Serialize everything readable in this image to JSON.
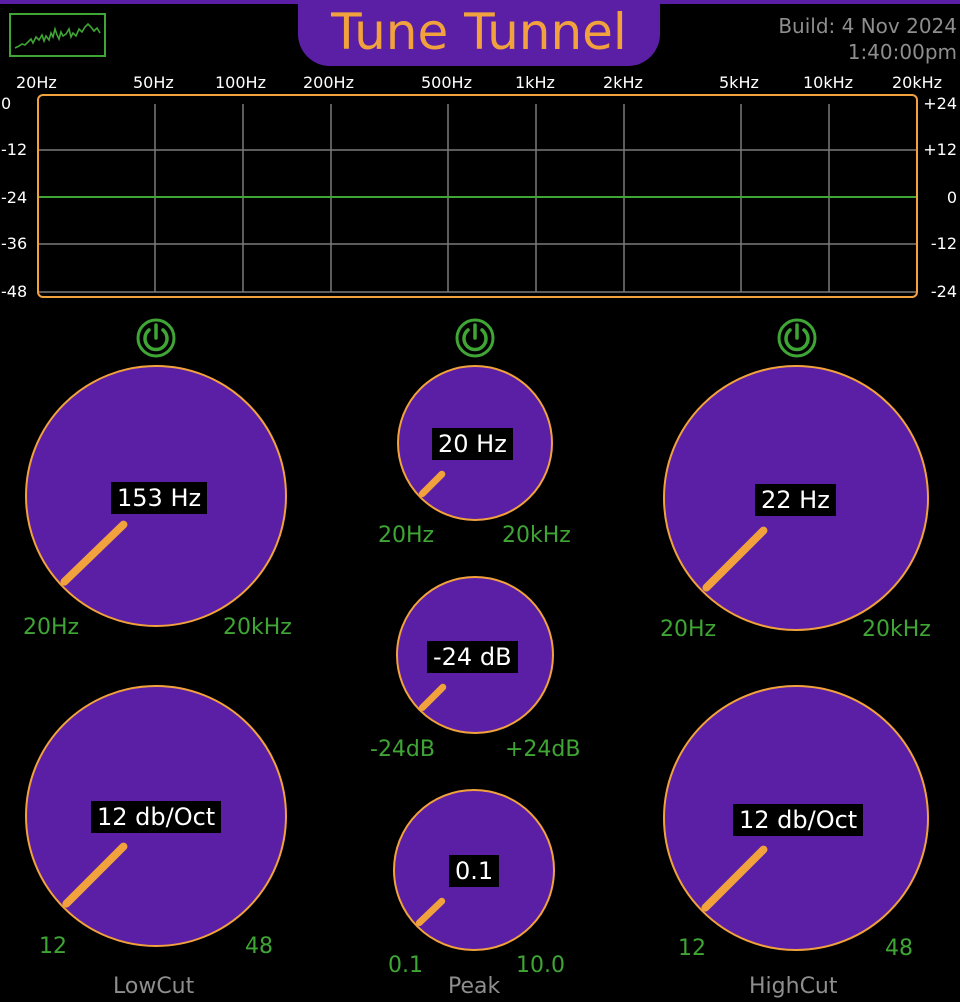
{
  "app": {
    "title": "Tune Tunnel",
    "build_line1": "Build: 4 Nov 2024",
    "build_line2": "1:40:00pm",
    "logo_icon": "spectrum-logo-icon"
  },
  "colors": {
    "accent": "#5b1fa6",
    "orange": "#f2a23c",
    "green": "#3fa535",
    "grey": "#8e8e8e"
  },
  "graph": {
    "freq_labels": [
      "20Hz",
      "50Hz",
      "100Hz",
      "200Hz",
      "500Hz",
      "1kHz",
      "2kHz",
      "5kHz",
      "10kHz",
      "20kHz"
    ],
    "left_db_labels": [
      "0",
      "-12",
      "-24",
      "-36",
      "-48"
    ],
    "right_db_labels": [
      "+24",
      "+12",
      "0",
      "-12",
      "-24"
    ]
  },
  "lowcut": {
    "label": "LowCut",
    "power_icon": "power-icon",
    "freq": {
      "value": "153 Hz",
      "min": "20Hz",
      "max": "20kHz"
    },
    "slope": {
      "value": "12 db/Oct",
      "min": "12",
      "max": "48"
    }
  },
  "peak": {
    "label": "Peak",
    "power_icon": "power-icon",
    "freq": {
      "value": "20 Hz",
      "min": "20Hz",
      "max": "20kHz"
    },
    "gain": {
      "value": "-24 dB",
      "min": "-24dB",
      "max": "+24dB"
    },
    "quality": {
      "value": "0.1",
      "min": "0.1",
      "max": "10.0"
    }
  },
  "highcut": {
    "label": "HighCut",
    "power_icon": "power-icon",
    "freq": {
      "value": "22 Hz",
      "min": "20Hz",
      "max": "20kHz"
    },
    "slope": {
      "value": "12 db/Oct",
      "min": "12",
      "max": "48"
    }
  }
}
